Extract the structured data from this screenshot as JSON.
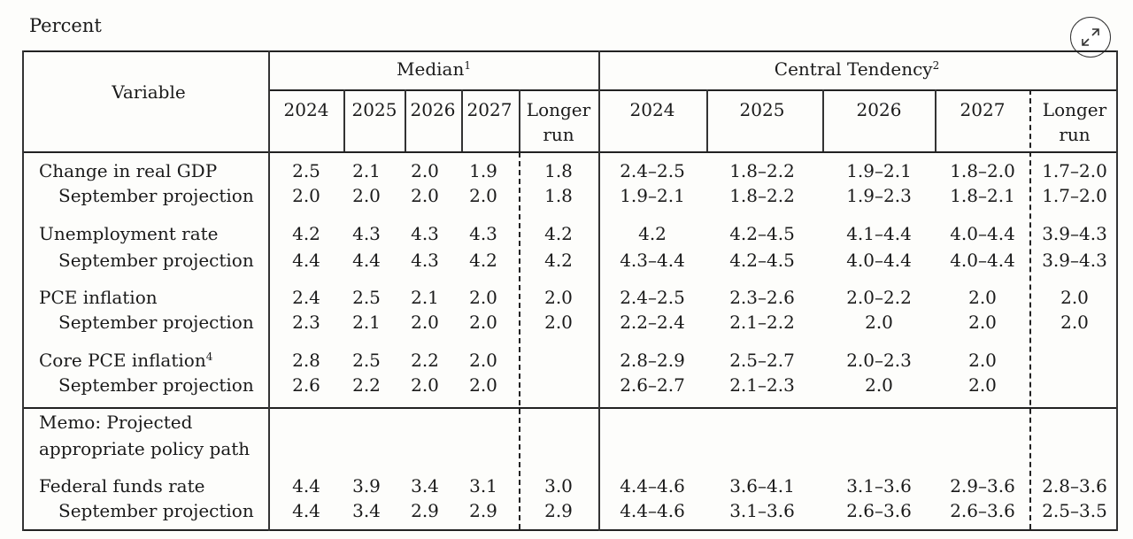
{
  "unit_label": "Percent",
  "header": {
    "variable": "Variable",
    "median": "Median",
    "median_note": "1",
    "central_tendency": "Central Tendency",
    "ct_note": "2",
    "years": [
      "2024",
      "2025",
      "2026",
      "2027"
    ],
    "longer_run_1": "Longer",
    "longer_run_2": "run"
  },
  "rows": [
    {
      "label": "Change in real GDP",
      "indent": false,
      "median": [
        "2.5",
        "2.1",
        "2.0",
        "1.9",
        "1.8"
      ],
      "ct": [
        "2.4–2.5",
        "1.8–2.2",
        "1.9–2.1",
        "1.8–2.0",
        "1.7–2.0"
      ]
    },
    {
      "label": "September projection",
      "indent": true,
      "median": [
        "2.0",
        "2.0",
        "2.0",
        "2.0",
        "1.8"
      ],
      "ct": [
        "1.9–2.1",
        "1.8–2.2",
        "1.9–2.3",
        "1.8–2.1",
        "1.7–2.0"
      ]
    },
    {
      "label": "Unemployment rate",
      "indent": false,
      "median": [
        "4.2",
        "4.3",
        "4.3",
        "4.3",
        "4.2"
      ],
      "ct": [
        "4.2",
        "4.2–4.5",
        "4.1–4.4",
        "4.0–4.4",
        "3.9–4.3"
      ]
    },
    {
      "label": "September projection",
      "indent": true,
      "median": [
        "4.4",
        "4.4",
        "4.3",
        "4.2",
        "4.2"
      ],
      "ct": [
        "4.3–4.4",
        "4.2–4.5",
        "4.0–4.4",
        "4.0–4.4",
        "3.9–4.3"
      ]
    },
    {
      "label": "PCE inflation",
      "indent": false,
      "median": [
        "2.4",
        "2.5",
        "2.1",
        "2.0",
        "2.0"
      ],
      "ct": [
        "2.4–2.5",
        "2.3–2.6",
        "2.0–2.2",
        "2.0",
        "2.0"
      ]
    },
    {
      "label": "September projection",
      "indent": true,
      "median": [
        "2.3",
        "2.1",
        "2.0",
        "2.0",
        "2.0"
      ],
      "ct": [
        "2.2–2.4",
        "2.1–2.2",
        "2.0",
        "2.0",
        "2.0"
      ]
    },
    {
      "label": "Core PCE inflation",
      "note": "4",
      "indent": false,
      "median": [
        "2.8",
        "2.5",
        "2.2",
        "2.0",
        ""
      ],
      "ct": [
        "2.8–2.9",
        "2.5–2.7",
        "2.0–2.3",
        "2.0",
        ""
      ]
    },
    {
      "label": "September projection",
      "indent": true,
      "median": [
        "2.6",
        "2.2",
        "2.0",
        "2.0",
        ""
      ],
      "ct": [
        "2.6–2.7",
        "2.1–2.3",
        "2.0",
        "2.0",
        ""
      ]
    }
  ],
  "memo": {
    "line1": "Memo: Projected",
    "line2": "appropriate policy path"
  },
  "memo_rows": [
    {
      "label": "Federal funds rate",
      "indent": false,
      "median": [
        "4.4",
        "3.9",
        "3.4",
        "3.1",
        "3.0"
      ],
      "ct": [
        "4.4–4.6",
        "3.6–4.1",
        "3.1–3.6",
        "2.9–3.6",
        "2.8–3.6"
      ]
    },
    {
      "label": "September projection",
      "indent": true,
      "median": [
        "4.4",
        "3.4",
        "2.9",
        "2.9",
        "2.9"
      ],
      "ct": [
        "4.4–4.6",
        "3.1–3.6",
        "2.6–3.6",
        "2.6–3.6",
        "2.5–3.5"
      ]
    }
  ]
}
